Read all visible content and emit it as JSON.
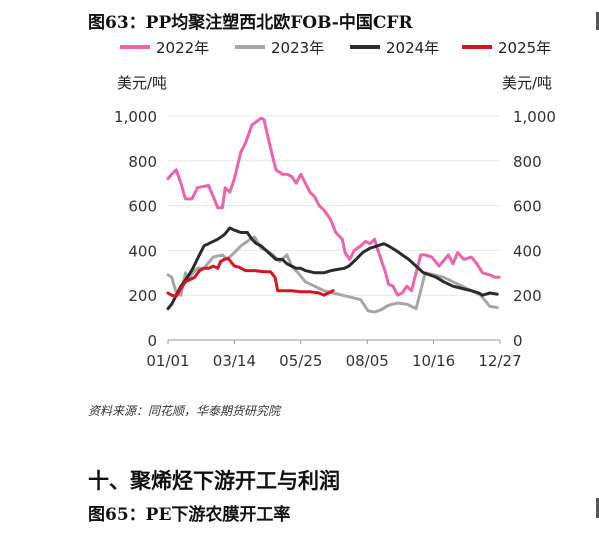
{
  "figure_title": "图63：PP均聚注塑西北欧FOB-中国CFR",
  "source": "资料来源：同花顺，华泰期货研究院",
  "section_heading": "十、聚烯烃下游开工与利润",
  "next_figure_title": "图65：PE下游农膜开工率",
  "chart_data": {
    "type": "line",
    "title": "PP均聚注塑西北欧FOB-中国CFR",
    "ylabel_left": "美元/吨",
    "ylabel_right": "美元/吨",
    "ylim": [
      0,
      1000
    ],
    "yticks": [
      "0",
      "200",
      "400",
      "600",
      "800",
      "1,000"
    ],
    "xticks": [
      "01/01",
      "03/14",
      "05/25",
      "08/05",
      "10/16",
      "12/27"
    ],
    "xtick_days": [
      1,
      73,
      145,
      217,
      289,
      361
    ],
    "xlim_days": [
      1,
      361
    ],
    "legend_position": "top",
    "series": [
      {
        "name": "2022年",
        "color": "#ef63ab",
        "points": [
          [
            1,
            720
          ],
          [
            5,
            740
          ],
          [
            10,
            760
          ],
          [
            15,
            700
          ],
          [
            20,
            630
          ],
          [
            27,
            630
          ],
          [
            33,
            680
          ],
          [
            45,
            690
          ],
          [
            50,
            640
          ],
          [
            55,
            590
          ],
          [
            60,
            590
          ],
          [
            63,
            680
          ],
          [
            68,
            660
          ],
          [
            73,
            720
          ],
          [
            80,
            840
          ],
          [
            85,
            880
          ],
          [
            92,
            960
          ],
          [
            97,
            975
          ],
          [
            102,
            990
          ],
          [
            105,
            985
          ],
          [
            112,
            860
          ],
          [
            118,
            760
          ],
          [
            125,
            740
          ],
          [
            130,
            740
          ],
          [
            135,
            730
          ],
          [
            140,
            700
          ],
          [
            145,
            740
          ],
          [
            150,
            700
          ],
          [
            155,
            660
          ],
          [
            160,
            640
          ],
          [
            165,
            600
          ],
          [
            170,
            580
          ],
          [
            177,
            540
          ],
          [
            183,
            480
          ],
          [
            190,
            450
          ],
          [
            193,
            390
          ],
          [
            198,
            360
          ],
          [
            203,
            400
          ],
          [
            210,
            420
          ],
          [
            215,
            440
          ],
          [
            220,
            430
          ],
          [
            225,
            450
          ],
          [
            228,
            410
          ],
          [
            232,
            360
          ],
          [
            237,
            300
          ],
          [
            240,
            250
          ],
          [
            245,
            240
          ],
          [
            250,
            200
          ],
          [
            255,
            210
          ],
          [
            260,
            240
          ],
          [
            265,
            220
          ],
          [
            270,
            300
          ],
          [
            275,
            380
          ],
          [
            280,
            380
          ],
          [
            287,
            370
          ],
          [
            295,
            330
          ],
          [
            305,
            380
          ],
          [
            310,
            340
          ],
          [
            315,
            390
          ],
          [
            322,
            360
          ],
          [
            330,
            370
          ],
          [
            336,
            340
          ],
          [
            342,
            300
          ],
          [
            350,
            290
          ],
          [
            356,
            280
          ],
          [
            360,
            280
          ]
        ]
      },
      {
        "name": "2023年",
        "color": "#a6a6a6",
        "points": [
          [
            1,
            290
          ],
          [
            5,
            280
          ],
          [
            10,
            210
          ],
          [
            15,
            200
          ],
          [
            20,
            300
          ],
          [
            23,
            270
          ],
          [
            28,
            300
          ],
          [
            33,
            320
          ],
          [
            40,
            320
          ],
          [
            50,
            370
          ],
          [
            60,
            380
          ],
          [
            65,
            360
          ],
          [
            73,
            390
          ],
          [
            80,
            420
          ],
          [
            87,
            440
          ],
          [
            90,
            450
          ],
          [
            95,
            460
          ],
          [
            102,
            410
          ],
          [
            108,
            400
          ],
          [
            115,
            380
          ],
          [
            122,
            350
          ],
          [
            130,
            380
          ],
          [
            135,
            330
          ],
          [
            142,
            300
          ],
          [
            150,
            260
          ],
          [
            160,
            240
          ],
          [
            170,
            220
          ],
          [
            180,
            210
          ],
          [
            190,
            200
          ],
          [
            200,
            190
          ],
          [
            210,
            180
          ],
          [
            218,
            130
          ],
          [
            225,
            125
          ],
          [
            232,
            135
          ],
          [
            240,
            155
          ],
          [
            250,
            165
          ],
          [
            260,
            160
          ],
          [
            270,
            140
          ],
          [
            280,
            300
          ],
          [
            290,
            290
          ],
          [
            300,
            280
          ],
          [
            310,
            260
          ],
          [
            320,
            240
          ],
          [
            330,
            220
          ],
          [
            340,
            200
          ],
          [
            350,
            150
          ],
          [
            358,
            145
          ]
        ]
      },
      {
        "name": "2024年",
        "color": "#2b2b2b",
        "points": [
          [
            1,
            140
          ],
          [
            5,
            160
          ],
          [
            10,
            200
          ],
          [
            15,
            240
          ],
          [
            22,
            280
          ],
          [
            28,
            320
          ],
          [
            35,
            380
          ],
          [
            40,
            420
          ],
          [
            45,
            430
          ],
          [
            55,
            450
          ],
          [
            62,
            470
          ],
          [
            68,
            500
          ],
          [
            73,
            490
          ],
          [
            80,
            480
          ],
          [
            87,
            480
          ],
          [
            92,
            450
          ],
          [
            97,
            430
          ],
          [
            102,
            420
          ],
          [
            110,
            390
          ],
          [
            118,
            360
          ],
          [
            125,
            360
          ],
          [
            130,
            340
          ],
          [
            135,
            330
          ],
          [
            140,
            320
          ],
          [
            145,
            320
          ],
          [
            150,
            310
          ],
          [
            160,
            300
          ],
          [
            170,
            300
          ],
          [
            178,
            310
          ],
          [
            185,
            315
          ],
          [
            192,
            320
          ],
          [
            197,
            330
          ],
          [
            205,
            360
          ],
          [
            212,
            390
          ],
          [
            220,
            410
          ],
          [
            228,
            420
          ],
          [
            235,
            430
          ],
          [
            240,
            420
          ],
          [
            248,
            400
          ],
          [
            255,
            380
          ],
          [
            262,
            360
          ],
          [
            270,
            330
          ],
          [
            278,
            300
          ],
          [
            285,
            290
          ],
          [
            292,
            280
          ],
          [
            300,
            260
          ],
          [
            310,
            240
          ],
          [
            320,
            230
          ],
          [
            330,
            220
          ],
          [
            338,
            210
          ],
          [
            342,
            200
          ],
          [
            350,
            210
          ],
          [
            358,
            205
          ]
        ]
      },
      {
        "name": "2025年",
        "color": "#d7131f",
        "points": [
          [
            1,
            210
          ],
          [
            5,
            200
          ],
          [
            10,
            195
          ],
          [
            15,
            230
          ],
          [
            20,
            260
          ],
          [
            25,
            270
          ],
          [
            30,
            280
          ],
          [
            35,
            310
          ],
          [
            40,
            320
          ],
          [
            45,
            320
          ],
          [
            50,
            330
          ],
          [
            55,
            320
          ],
          [
            58,
            350
          ],
          [
            62,
            360
          ],
          [
            66,
            365
          ],
          [
            70,
            345
          ],
          [
            73,
            330
          ],
          [
            78,
            325
          ],
          [
            85,
            310
          ],
          [
            95,
            310
          ],
          [
            105,
            305
          ],
          [
            112,
            305
          ],
          [
            117,
            280
          ],
          [
            120,
            220
          ],
          [
            125,
            220
          ],
          [
            135,
            220
          ],
          [
            145,
            215
          ],
          [
            155,
            215
          ],
          [
            165,
            210
          ],
          [
            170,
            200
          ],
          [
            175,
            210
          ],
          [
            180,
            220
          ]
        ]
      }
    ]
  }
}
